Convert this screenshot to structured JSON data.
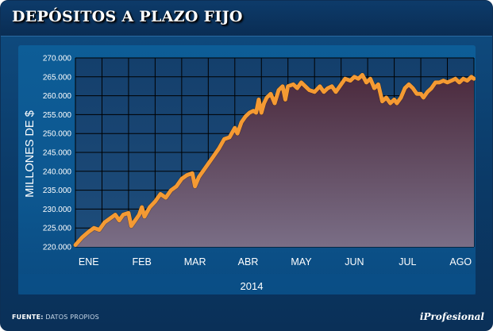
{
  "header": {
    "title": "DEPÓSITOS A PLAZO FIJO"
  },
  "footer": {
    "source_label": "FUENTE:",
    "source_value": "DATOS PROPIOS",
    "brand": "iProfesional"
  },
  "colors": {
    "line": "#f49a33",
    "area_top": "#4b2a3d",
    "area_bottom": "#7a6e86",
    "plot_bg": "#123f6e",
    "grid": "#000000"
  },
  "chart_data": {
    "type": "area",
    "title": "DEPÓSITOS A PLAZO FIJO",
    "xlabel": "2014",
    "ylabel": "MILLONES DE $",
    "ylim": [
      220000,
      270000
    ],
    "yticks": [
      220000,
      225000,
      230000,
      235000,
      240000,
      245000,
      250000,
      255000,
      260000,
      265000,
      270000
    ],
    "ytick_labels": [
      "220.000",
      "225.000",
      "230.000",
      "235.000",
      "240.000",
      "245.000",
      "250.000",
      "255.000",
      "260.000",
      "265.000",
      "270.000"
    ],
    "categories": [
      "ENE",
      "FEB",
      "MAR",
      "ABR",
      "MAY",
      "JUN",
      "JUL",
      "AGO"
    ],
    "grid": true,
    "series": [
      {
        "values": [
          [
            0.0,
            220500
          ],
          [
            0.25,
            222500
          ],
          [
            0.5,
            224000
          ],
          [
            0.7,
            225000
          ],
          [
            0.9,
            224500
          ],
          [
            1.1,
            226500
          ],
          [
            1.3,
            227500
          ],
          [
            1.5,
            228500
          ],
          [
            1.65,
            227000
          ],
          [
            1.8,
            228500
          ],
          [
            2.0,
            229000
          ],
          [
            2.1,
            225500
          ],
          [
            2.25,
            227000
          ],
          [
            2.4,
            228500
          ],
          [
            2.5,
            230500
          ],
          [
            2.6,
            228000
          ],
          [
            2.8,
            230500
          ],
          [
            3.0,
            232000
          ],
          [
            3.2,
            234000
          ],
          [
            3.4,
            233000
          ],
          [
            3.6,
            235000
          ],
          [
            3.8,
            236000
          ],
          [
            4.0,
            238000
          ],
          [
            4.2,
            239000
          ],
          [
            4.4,
            239500
          ],
          [
            4.5,
            236000
          ],
          [
            4.65,
            238500
          ],
          [
            4.8,
            240000
          ],
          [
            5.0,
            242000
          ],
          [
            5.2,
            244000
          ],
          [
            5.4,
            246000
          ],
          [
            5.6,
            248500
          ],
          [
            5.8,
            249000
          ],
          [
            6.0,
            251500
          ],
          [
            6.1,
            250000
          ],
          [
            6.25,
            253000
          ],
          [
            6.4,
            254500
          ],
          [
            6.55,
            255500
          ],
          [
            6.7,
            256000
          ],
          [
            6.8,
            255500
          ],
          [
            6.9,
            259000
          ],
          [
            7.0,
            255500
          ],
          [
            7.1,
            258000
          ],
          [
            7.2,
            259500
          ],
          [
            7.35,
            260500
          ],
          [
            7.5,
            258000
          ],
          [
            7.65,
            261500
          ],
          [
            7.8,
            262500
          ],
          [
            7.9,
            259000
          ],
          [
            8.0,
            262500
          ],
          [
            8.2,
            263000
          ],
          [
            8.35,
            262000
          ],
          [
            8.5,
            263500
          ],
          [
            8.65,
            262500
          ],
          [
            8.8,
            261500
          ],
          [
            9.0,
            261000
          ],
          [
            9.2,
            262500
          ],
          [
            9.35,
            261000
          ],
          [
            9.5,
            262000
          ],
          [
            9.65,
            262500
          ],
          [
            9.8,
            261000
          ],
          [
            10.0,
            263000
          ],
          [
            10.15,
            264500
          ],
          [
            10.35,
            264000
          ],
          [
            10.5,
            265000
          ],
          [
            10.65,
            264500
          ],
          [
            10.8,
            265500
          ],
          [
            10.95,
            263500
          ],
          [
            11.1,
            264500
          ],
          [
            11.25,
            262000
          ],
          [
            11.4,
            263000
          ],
          [
            11.55,
            258500
          ],
          [
            11.7,
            259500
          ],
          [
            11.85,
            258000
          ],
          [
            12.0,
            259000
          ],
          [
            12.1,
            258000
          ],
          [
            12.25,
            259500
          ],
          [
            12.4,
            262000
          ],
          [
            12.55,
            263000
          ],
          [
            12.7,
            262000
          ],
          [
            12.85,
            260500
          ],
          [
            13.0,
            260500
          ],
          [
            13.1,
            259500
          ],
          [
            13.25,
            261000
          ],
          [
            13.4,
            262000
          ],
          [
            13.55,
            263500
          ],
          [
            13.7,
            263500
          ],
          [
            13.85,
            264000
          ],
          [
            14.0,
            263500
          ],
          [
            14.15,
            264000
          ],
          [
            14.3,
            264500
          ],
          [
            14.45,
            263500
          ],
          [
            14.6,
            264500
          ],
          [
            14.75,
            264000
          ],
          [
            14.9,
            265000
          ],
          [
            15.0,
            264500
          ]
        ]
      }
    ]
  }
}
